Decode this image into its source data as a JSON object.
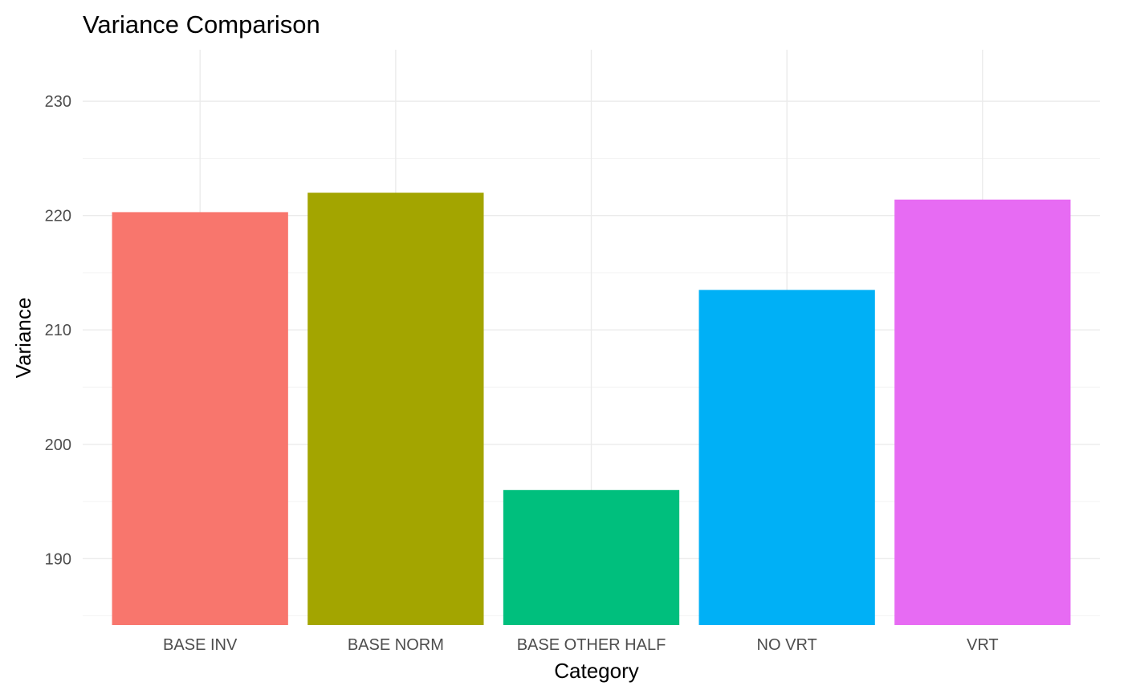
{
  "chart_data": {
    "type": "bar",
    "title": "Variance Comparison",
    "xlabel": "Category",
    "ylabel": "Variance",
    "categories": [
      "BASE INV",
      "BASE NORM",
      "BASE OTHER HALF",
      "NO VRT",
      "VRT"
    ],
    "values": [
      220.3,
      222.0,
      196.0,
      213.5,
      221.4
    ],
    "colors": [
      "#F8766D",
      "#A3A500",
      "#00BF7D",
      "#00B0F6",
      "#E76BF3"
    ],
    "ylim": [
      184.2,
      234.5
    ],
    "yticks": [
      190,
      200,
      210,
      220,
      230
    ],
    "ytick_labels": [
      "190",
      "200",
      "210",
      "220",
      "230"
    ],
    "grid": true,
    "legend": "none"
  }
}
